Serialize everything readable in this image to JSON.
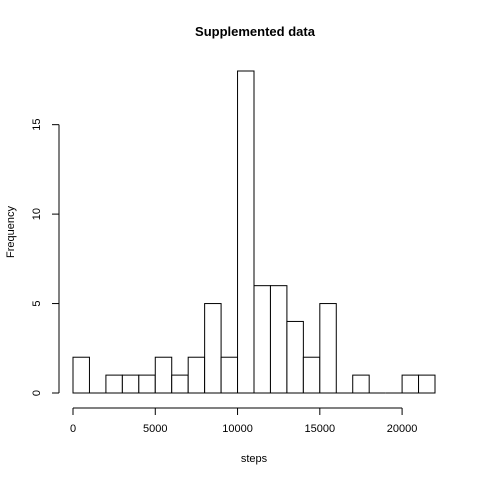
{
  "chart_data": {
    "type": "bar",
    "title": "Supplemented data",
    "xlabel": "steps",
    "ylabel": "Frequency",
    "bin_width": 1000,
    "bins": [
      {
        "start": 0,
        "end": 1000,
        "count": 2
      },
      {
        "start": 1000,
        "end": 2000,
        "count": 0
      },
      {
        "start": 2000,
        "end": 3000,
        "count": 1
      },
      {
        "start": 3000,
        "end": 4000,
        "count": 1
      },
      {
        "start": 4000,
        "end": 5000,
        "count": 1
      },
      {
        "start": 5000,
        "end": 6000,
        "count": 2
      },
      {
        "start": 6000,
        "end": 7000,
        "count": 1
      },
      {
        "start": 7000,
        "end": 8000,
        "count": 2
      },
      {
        "start": 8000,
        "end": 9000,
        "count": 5
      },
      {
        "start": 9000,
        "end": 10000,
        "count": 2
      },
      {
        "start": 10000,
        "end": 11000,
        "count": 18
      },
      {
        "start": 11000,
        "end": 12000,
        "count": 6
      },
      {
        "start": 12000,
        "end": 13000,
        "count": 6
      },
      {
        "start": 13000,
        "end": 14000,
        "count": 4
      },
      {
        "start": 14000,
        "end": 15000,
        "count": 2
      },
      {
        "start": 15000,
        "end": 16000,
        "count": 5
      },
      {
        "start": 16000,
        "end": 17000,
        "count": 0
      },
      {
        "start": 17000,
        "end": 18000,
        "count": 1
      },
      {
        "start": 18000,
        "end": 19000,
        "count": 0
      },
      {
        "start": 19000,
        "end": 20000,
        "count": 0
      },
      {
        "start": 20000,
        "end": 21000,
        "count": 1
      },
      {
        "start": 21000,
        "end": 22000,
        "count": 1
      }
    ],
    "xlim": [
      0,
      22000
    ],
    "ylim": [
      0,
      18
    ],
    "x_ticks": [
      0,
      5000,
      10000,
      15000,
      20000
    ],
    "x_tick_labels": [
      "0",
      "5000",
      "10000",
      "15000",
      "20000"
    ],
    "y_ticks": [
      0,
      5,
      10,
      15
    ],
    "y_tick_labels": [
      "0",
      "5",
      "10",
      "15"
    ],
    "grid": false,
    "bar_fill": "#ffffff",
    "bar_stroke": "#000000"
  }
}
